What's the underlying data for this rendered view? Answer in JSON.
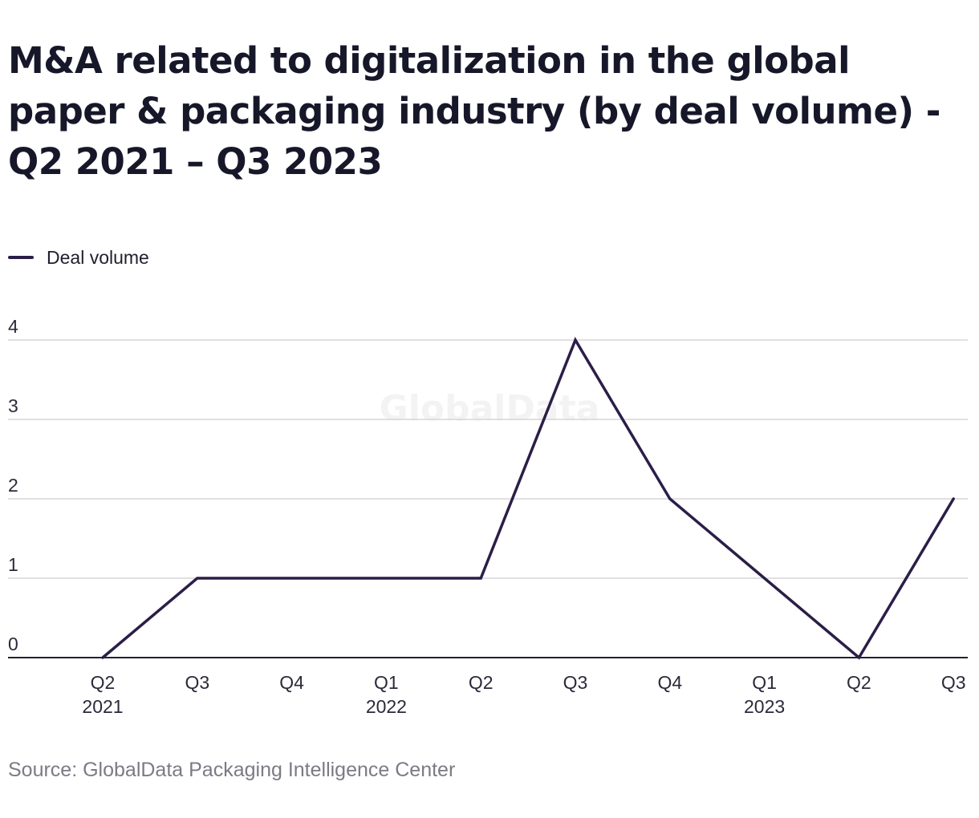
{
  "chart_data": {
    "type": "line",
    "title": "M&A related to digitalization in the global paper & packaging industry (by deal volume) - Q2 2021 – Q3 2023",
    "categories": [
      "Q2 2021",
      "Q3 2021",
      "Q4 2021",
      "Q1 2022",
      "Q2 2022",
      "Q3 2022",
      "Q4 2022",
      "Q1 2023",
      "Q2 2023",
      "Q3 2023"
    ],
    "tick_labels": [
      {
        "line1": "Q2",
        "line2": "2021"
      },
      {
        "line1": "Q3",
        "line2": ""
      },
      {
        "line1": "Q4",
        "line2": ""
      },
      {
        "line1": "Q1",
        "line2": "2022"
      },
      {
        "line1": "Q2",
        "line2": ""
      },
      {
        "line1": "Q3",
        "line2": ""
      },
      {
        "line1": "Q4",
        "line2": ""
      },
      {
        "line1": "Q1",
        "line2": "2023"
      },
      {
        "line1": "Q2",
        "line2": ""
      },
      {
        "line1": "Q3",
        "line2": ""
      }
    ],
    "series": [
      {
        "name": "Deal volume",
        "values": [
          0,
          1,
          1,
          1,
          1,
          4,
          2,
          1,
          0,
          2
        ],
        "color": "#2b1e47"
      }
    ],
    "ylim": [
      0,
      4
    ],
    "yticks": [
      0,
      1,
      2,
      3,
      4
    ],
    "xlabel": "",
    "ylabel": "",
    "grid": true,
    "legend_position": "top-left",
    "watermark": "GlobalData",
    "source": "Source: GlobalData Packaging Intelligence Center"
  }
}
